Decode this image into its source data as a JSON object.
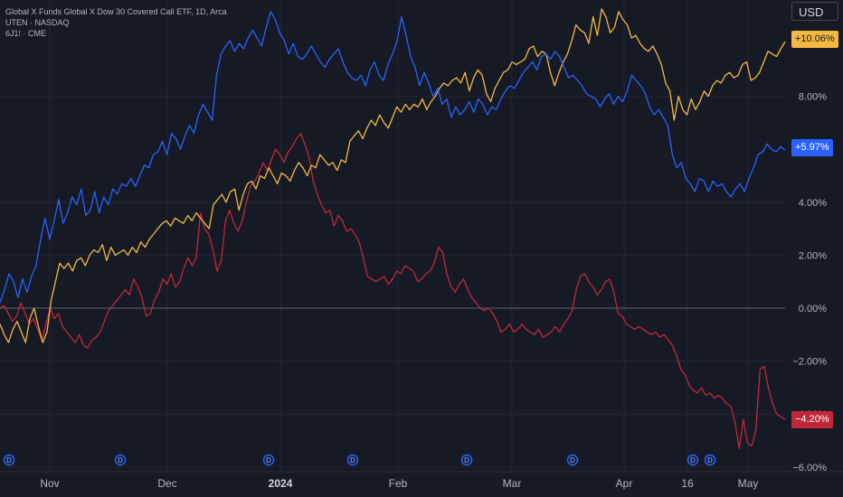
{
  "legend": {
    "line1": "Global X Funds Global X Dow 30 Covered Call ETF, 1D, Arca",
    "line2": "UTEN · NASDAQ",
    "line3": "6J1! · CME"
  },
  "currency_button": "USD",
  "colors": {
    "background": "#161a25",
    "grid": "#232632",
    "text": "#b2b5be",
    "zero_line": "#5d606b",
    "series_blue": "#2962ff",
    "series_yellow": "#f5b942",
    "series_red": "#c0283a",
    "dividend_marker": "#2962ff"
  },
  "chart_data": {
    "type": "line",
    "yunit": "%",
    "ylim": [
      -6,
      11
    ],
    "y_ticks": [
      "8.00%",
      "4.00%",
      "2.00%",
      "0.00%",
      "−2.00%",
      "−4.00%",
      "−6.00%"
    ],
    "x_ticks": [
      "Nov",
      "Dec",
      "2024",
      "Feb",
      "Mar",
      "Apr",
      "16",
      "May"
    ],
    "grid": true,
    "last_values": [
      {
        "series": "Global X Dow 30 Covered Call ETF",
        "label": "+10.06%",
        "color": "#f5b942"
      },
      {
        "series": "UTEN",
        "label": "+5.97%",
        "color": "#2962ff"
      },
      {
        "series": "6J1!",
        "label": "−4.20%",
        "color": "#c0283a"
      }
    ],
    "dividend_markers": 8,
    "dividend_marker_label": "D",
    "series": [
      {
        "name": "Global X Dow 30 Covered Call ETF",
        "color": "#f5b942",
        "values": [
          -0.6,
          -1.0,
          -1.3,
          -0.8,
          -0.5,
          -0.9,
          -1.3,
          -0.4,
          0.0,
          -0.7,
          -1.3,
          -0.9,
          0.3,
          1.0,
          1.7,
          1.5,
          1.7,
          1.4,
          1.8,
          1.9,
          1.6,
          2.0,
          2.2,
          2.1,
          2.4,
          1.8,
          2.3,
          2.0,
          2.1,
          2.2,
          2.0,
          2.3,
          2.1,
          2.5,
          2.3,
          2.6,
          2.8,
          3.0,
          3.2,
          3.3,
          3.1,
          3.4,
          3.3,
          3.2,
          3.5,
          3.3,
          3.6,
          3.4,
          3.2,
          3.0,
          3.9,
          4.1,
          4.3,
          4.0,
          4.4,
          4.5,
          3.7,
          4.3,
          4.7,
          4.8,
          4.5,
          5.0,
          4.9,
          5.3,
          5.0,
          4.7,
          5.1,
          5.0,
          4.8,
          5.2,
          5.5,
          5.3,
          5.0,
          5.4,
          5.3,
          5.8,
          5.6,
          5.4,
          5.5,
          5.2,
          5.6,
          5.5,
          6.3,
          6.5,
          6.7,
          6.4,
          6.8,
          7.1,
          6.9,
          7.3,
          7.0,
          6.8,
          7.2,
          7.6,
          7.4,
          7.7,
          7.5,
          7.7,
          7.6,
          7.9,
          7.5,
          7.8,
          8.0,
          8.3,
          8.5,
          8.4,
          8.6,
          8.7,
          8.5,
          8.9,
          8.2,
          8.7,
          9.0,
          8.8,
          8.1,
          7.8,
          8.3,
          8.6,
          8.9,
          9.0,
          9.3,
          9.2,
          9.3,
          9.4,
          9.8,
          9.9,
          9.5,
          9.7,
          9.6,
          8.9,
          8.4,
          8.9,
          9.3,
          9.6,
          10.1,
          10.7,
          10.5,
          10.4,
          10.0,
          11.0,
          10.3,
          11.3,
          11.0,
          10.4,
          10.6,
          11.2,
          10.9,
          10.7,
          10.2,
          10.3,
          10.0,
          9.8,
          9.7,
          9.9,
          9.6,
          9.2,
          8.5,
          8.2,
          7.1,
          8.0,
          7.5,
          7.3,
          7.9,
          7.5,
          7.8,
          8.2,
          8.0,
          8.4,
          8.6,
          8.5,
          8.8,
          8.9,
          8.7,
          8.8,
          9.2,
          9.3,
          8.6,
          8.7,
          8.9,
          9.3,
          9.7,
          9.6,
          9.5,
          9.8,
          10.06
        ]
      },
      {
        "name": "UTEN",
        "color": "#2962ff",
        "values": [
          0.2,
          0.7,
          1.3,
          1.0,
          0.4,
          1.1,
          0.6,
          1.2,
          1.6,
          2.6,
          3.4,
          2.6,
          3.3,
          4.1,
          3.2,
          3.6,
          4.2,
          3.9,
          4.5,
          3.5,
          3.7,
          4.4,
          3.6,
          4.2,
          3.9,
          4.5,
          4.3,
          4.7,
          4.6,
          4.9,
          4.6,
          5.0,
          5.4,
          5.3,
          5.8,
          5.9,
          6.3,
          5.8,
          6.6,
          6.4,
          6.0,
          6.5,
          6.9,
          6.6,
          7.3,
          7.7,
          7.4,
          7.1,
          8.8,
          9.6,
          9.9,
          10.1,
          9.7,
          10.0,
          9.8,
          10.2,
          10.5,
          10.2,
          9.9,
          10.6,
          11.2,
          10.9,
          10.4,
          10.1,
          9.6,
          10.0,
          9.5,
          9.4,
          9.6,
          9.9,
          9.6,
          9.3,
          9.1,
          9.4,
          9.6,
          9.8,
          9.3,
          8.9,
          8.7,
          8.6,
          8.8,
          8.4,
          9.0,
          9.3,
          8.8,
          8.6,
          9.2,
          9.6,
          10.1,
          11.0,
          10.3,
          9.5,
          9.1,
          8.4,
          8.9,
          8.5,
          8.0,
          8.3,
          7.7,
          7.9,
          7.2,
          7.6,
          7.3,
          7.5,
          7.8,
          7.4,
          7.9,
          7.7,
          7.3,
          7.6,
          7.5,
          7.9,
          8.2,
          8.4,
          8.3,
          8.6,
          8.9,
          9.1,
          9.3,
          9.0,
          9.5,
          9.6,
          9.4,
          9.7,
          9.5,
          9.1,
          8.7,
          8.8,
          8.6,
          8.4,
          8.1,
          8.0,
          7.9,
          7.6,
          7.9,
          8.1,
          7.7,
          8.0,
          7.8,
          8.2,
          8.8,
          8.6,
          8.4,
          8.1,
          7.6,
          7.3,
          7.5,
          7.2,
          6.9,
          5.8,
          5.3,
          5.5,
          4.9,
          4.7,
          4.4,
          4.9,
          4.8,
          4.4,
          4.8,
          4.6,
          4.7,
          4.4,
          4.2,
          4.5,
          4.7,
          4.4,
          4.9,
          5.3,
          5.8,
          5.9,
          6.2,
          6.0,
          5.9,
          6.1,
          5.97
        ]
      },
      {
        "name": "6J1!",
        "color": "#c0283a",
        "values": [
          0.0,
          0.1,
          -0.2,
          -0.5,
          -0.3,
          0.2,
          -0.2,
          -0.6,
          -0.4,
          -0.8,
          -1.2,
          -0.6,
          0.0,
          -0.4,
          -0.2,
          -0.7,
          -0.9,
          -1.1,
          -1.3,
          -1.0,
          -1.4,
          -1.5,
          -1.2,
          -1.1,
          -0.9,
          -0.5,
          -0.1,
          0.1,
          0.3,
          0.5,
          0.7,
          0.5,
          1.1,
          0.8,
          0.4,
          -0.3,
          -0.2,
          0.3,
          0.6,
          1.1,
          0.9,
          1.3,
          0.8,
          1.0,
          1.5,
          1.9,
          1.6,
          1.9,
          3.6,
          3.0,
          2.8,
          2.2,
          1.4,
          1.8,
          3.3,
          3.7,
          3.2,
          2.9,
          3.3,
          4.0,
          4.6,
          4.8,
          5.1,
          5.5,
          5.2,
          5.6,
          6.0,
          5.8,
          5.5,
          5.9,
          6.1,
          6.4,
          6.6,
          6.2,
          5.7,
          4.8,
          4.3,
          3.9,
          3.6,
          3.7,
          3.1,
          3.5,
          3.3,
          2.9,
          3.0,
          2.8,
          2.5,
          1.9,
          1.2,
          1.1,
          1.0,
          1.1,
          1.2,
          0.9,
          1.1,
          1.4,
          1.3,
          1.6,
          1.5,
          1.4,
          1.0,
          1.1,
          1.3,
          1.4,
          1.7,
          2.3,
          2.1,
          1.3,
          0.8,
          0.6,
          0.9,
          1.1,
          0.7,
          0.4,
          0.2,
          0.0,
          -0.1,
          0.0,
          -0.2,
          -0.5,
          -0.9,
          -0.8,
          -0.6,
          -0.9,
          -0.8,
          -0.6,
          -0.8,
          -0.9,
          -1.0,
          -0.8,
          -1.1,
          -1.0,
          -0.9,
          -0.7,
          -0.9,
          -0.6,
          -0.4,
          -0.1,
          0.7,
          1.2,
          1.3,
          1.0,
          0.8,
          0.5,
          0.7,
          1.0,
          1.1,
          0.6,
          -0.2,
          -0.3,
          -0.6,
          -0.7,
          -0.8,
          -0.7,
          -0.8,
          -0.9,
          -1.0,
          -0.9,
          -1.1,
          -1.0,
          -1.2,
          -1.4,
          -1.8,
          -2.3,
          -2.5,
          -2.9,
          -3.1,
          -3.2,
          -3.0,
          -3.3,
          -3.2,
          -3.4,
          -3.3,
          -3.4,
          -3.6,
          -3.7,
          -4.3,
          -5.3,
          -4.2,
          -5.1,
          -5.2,
          -4.6,
          -2.3,
          -2.2,
          -3.0,
          -3.6,
          -4.0,
          -4.1,
          -4.2
        ]
      }
    ]
  }
}
